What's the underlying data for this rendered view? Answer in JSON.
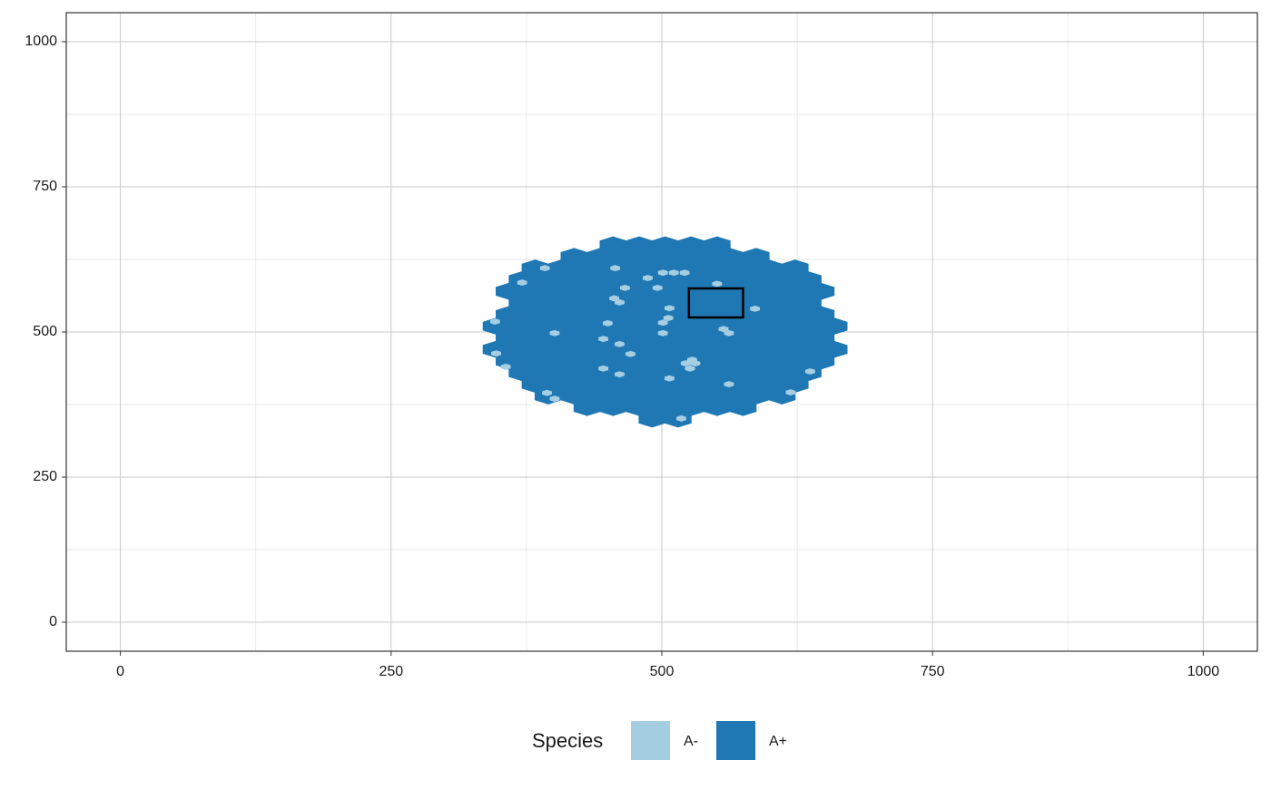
{
  "chart_data": {
    "type": "hexmap",
    "xlim": [
      -50,
      1050
    ],
    "ylim": [
      -50,
      1050
    ],
    "xticks": [
      0,
      250,
      500,
      750,
      1000
    ],
    "yticks": [
      0,
      250,
      500,
      750,
      1000
    ],
    "xminor": [
      125,
      375,
      625,
      875
    ],
    "yminor": [
      125,
      375,
      625,
      875
    ],
    "grid": true,
    "legend": {
      "title": "Species",
      "position": "bottom"
    },
    "series": [
      {
        "name": "A-",
        "color": "#a6cee3",
        "x": [
          457,
          487,
          501,
          511,
          521,
          496,
          551,
          456,
          461,
          507,
          466,
          586,
          506,
          501,
          450,
          557,
          562,
          501,
          401,
          446,
          461,
          471,
          522,
          528,
          531,
          526,
          446,
          461,
          507,
          562,
          346,
          347,
          356,
          392,
          371,
          619,
          637,
          518,
          394,
          401
        ],
        "y": [
          610,
          593,
          602,
          602,
          602,
          576,
          583,
          558,
          551,
          541,
          576,
          540,
          524,
          516,
          515,
          505,
          498,
          498,
          498,
          488,
          479,
          462,
          446,
          452,
          446,
          437,
          437,
          427,
          420,
          410,
          518,
          463,
          440,
          610,
          585,
          396,
          432,
          351,
          395,
          385
        ]
      },
      {
        "name": "A+",
        "color": "#1f78b4",
        "rows": [
          {
            "y": 350,
            "x": [
              491,
              515
            ]
          },
          {
            "y": 370,
            "x": [
              431,
              455,
              479,
              503,
              527,
              551,
              575
            ]
          },
          {
            "y": 390,
            "x": [
              395,
              419,
              443,
              467,
              491,
              515,
              539,
              563,
              587,
              611
            ]
          },
          {
            "y": 410,
            "x": [
              383,
              407,
              431,
              455,
              479,
              503,
              527,
              551,
              575,
              599,
              623
            ]
          },
          {
            "y": 430,
            "x": [
              371,
              395,
              419,
              443,
              467,
              491,
              515,
              539,
              563,
              587,
              611,
              635
            ]
          },
          {
            "y": 450,
            "x": [
              359,
              383,
              407,
              431,
              455,
              479,
              503,
              527,
              551,
              575,
              599,
              623,
              647
            ]
          },
          {
            "y": 470,
            "x": [
              347,
              371,
              395,
              419,
              443,
              467,
              491,
              515,
              539,
              563,
              587,
              611,
              635,
              659
            ]
          },
          {
            "y": 490,
            "x": [
              359,
              383,
              407,
              431,
              455,
              479,
              503,
              527,
              551,
              575,
              599,
              623,
              647
            ]
          },
          {
            "y": 510,
            "x": [
              347,
              371,
              395,
              419,
              443,
              467,
              491,
              515,
              539,
              563,
              587,
              611,
              635,
              659
            ]
          },
          {
            "y": 530,
            "x": [
              359,
              383,
              407,
              431,
              455,
              479,
              503,
              527,
              551,
              575,
              599,
              623,
              647
            ]
          },
          {
            "y": 550,
            "x": [
              371,
              395,
              419,
              443,
              467,
              491,
              515,
              539,
              563,
              587,
              611,
              635
            ]
          },
          {
            "y": 570,
            "x": [
              359,
              383,
              407,
              431,
              455,
              479,
              503,
              527,
              551,
              575,
              599,
              623,
              647
            ]
          },
          {
            "y": 590,
            "x": [
              371,
              395,
              419,
              443,
              467,
              491,
              515,
              539,
              563,
              587,
              611,
              635
            ]
          },
          {
            "y": 610,
            "x": [
              383,
              407,
              431,
              455,
              479,
              503,
              527,
              551,
              575,
              599,
              623
            ]
          },
          {
            "y": 630,
            "x": [
              419,
              443,
              467,
              491,
              515,
              539,
              563,
              587
            ]
          },
          {
            "y": 650,
            "x": [
              455,
              479,
              503,
              527,
              551
            ]
          }
        ]
      }
    ],
    "highlight_box": {
      "xlim": [
        525,
        575
      ],
      "ylim": [
        525,
        575
      ]
    }
  }
}
